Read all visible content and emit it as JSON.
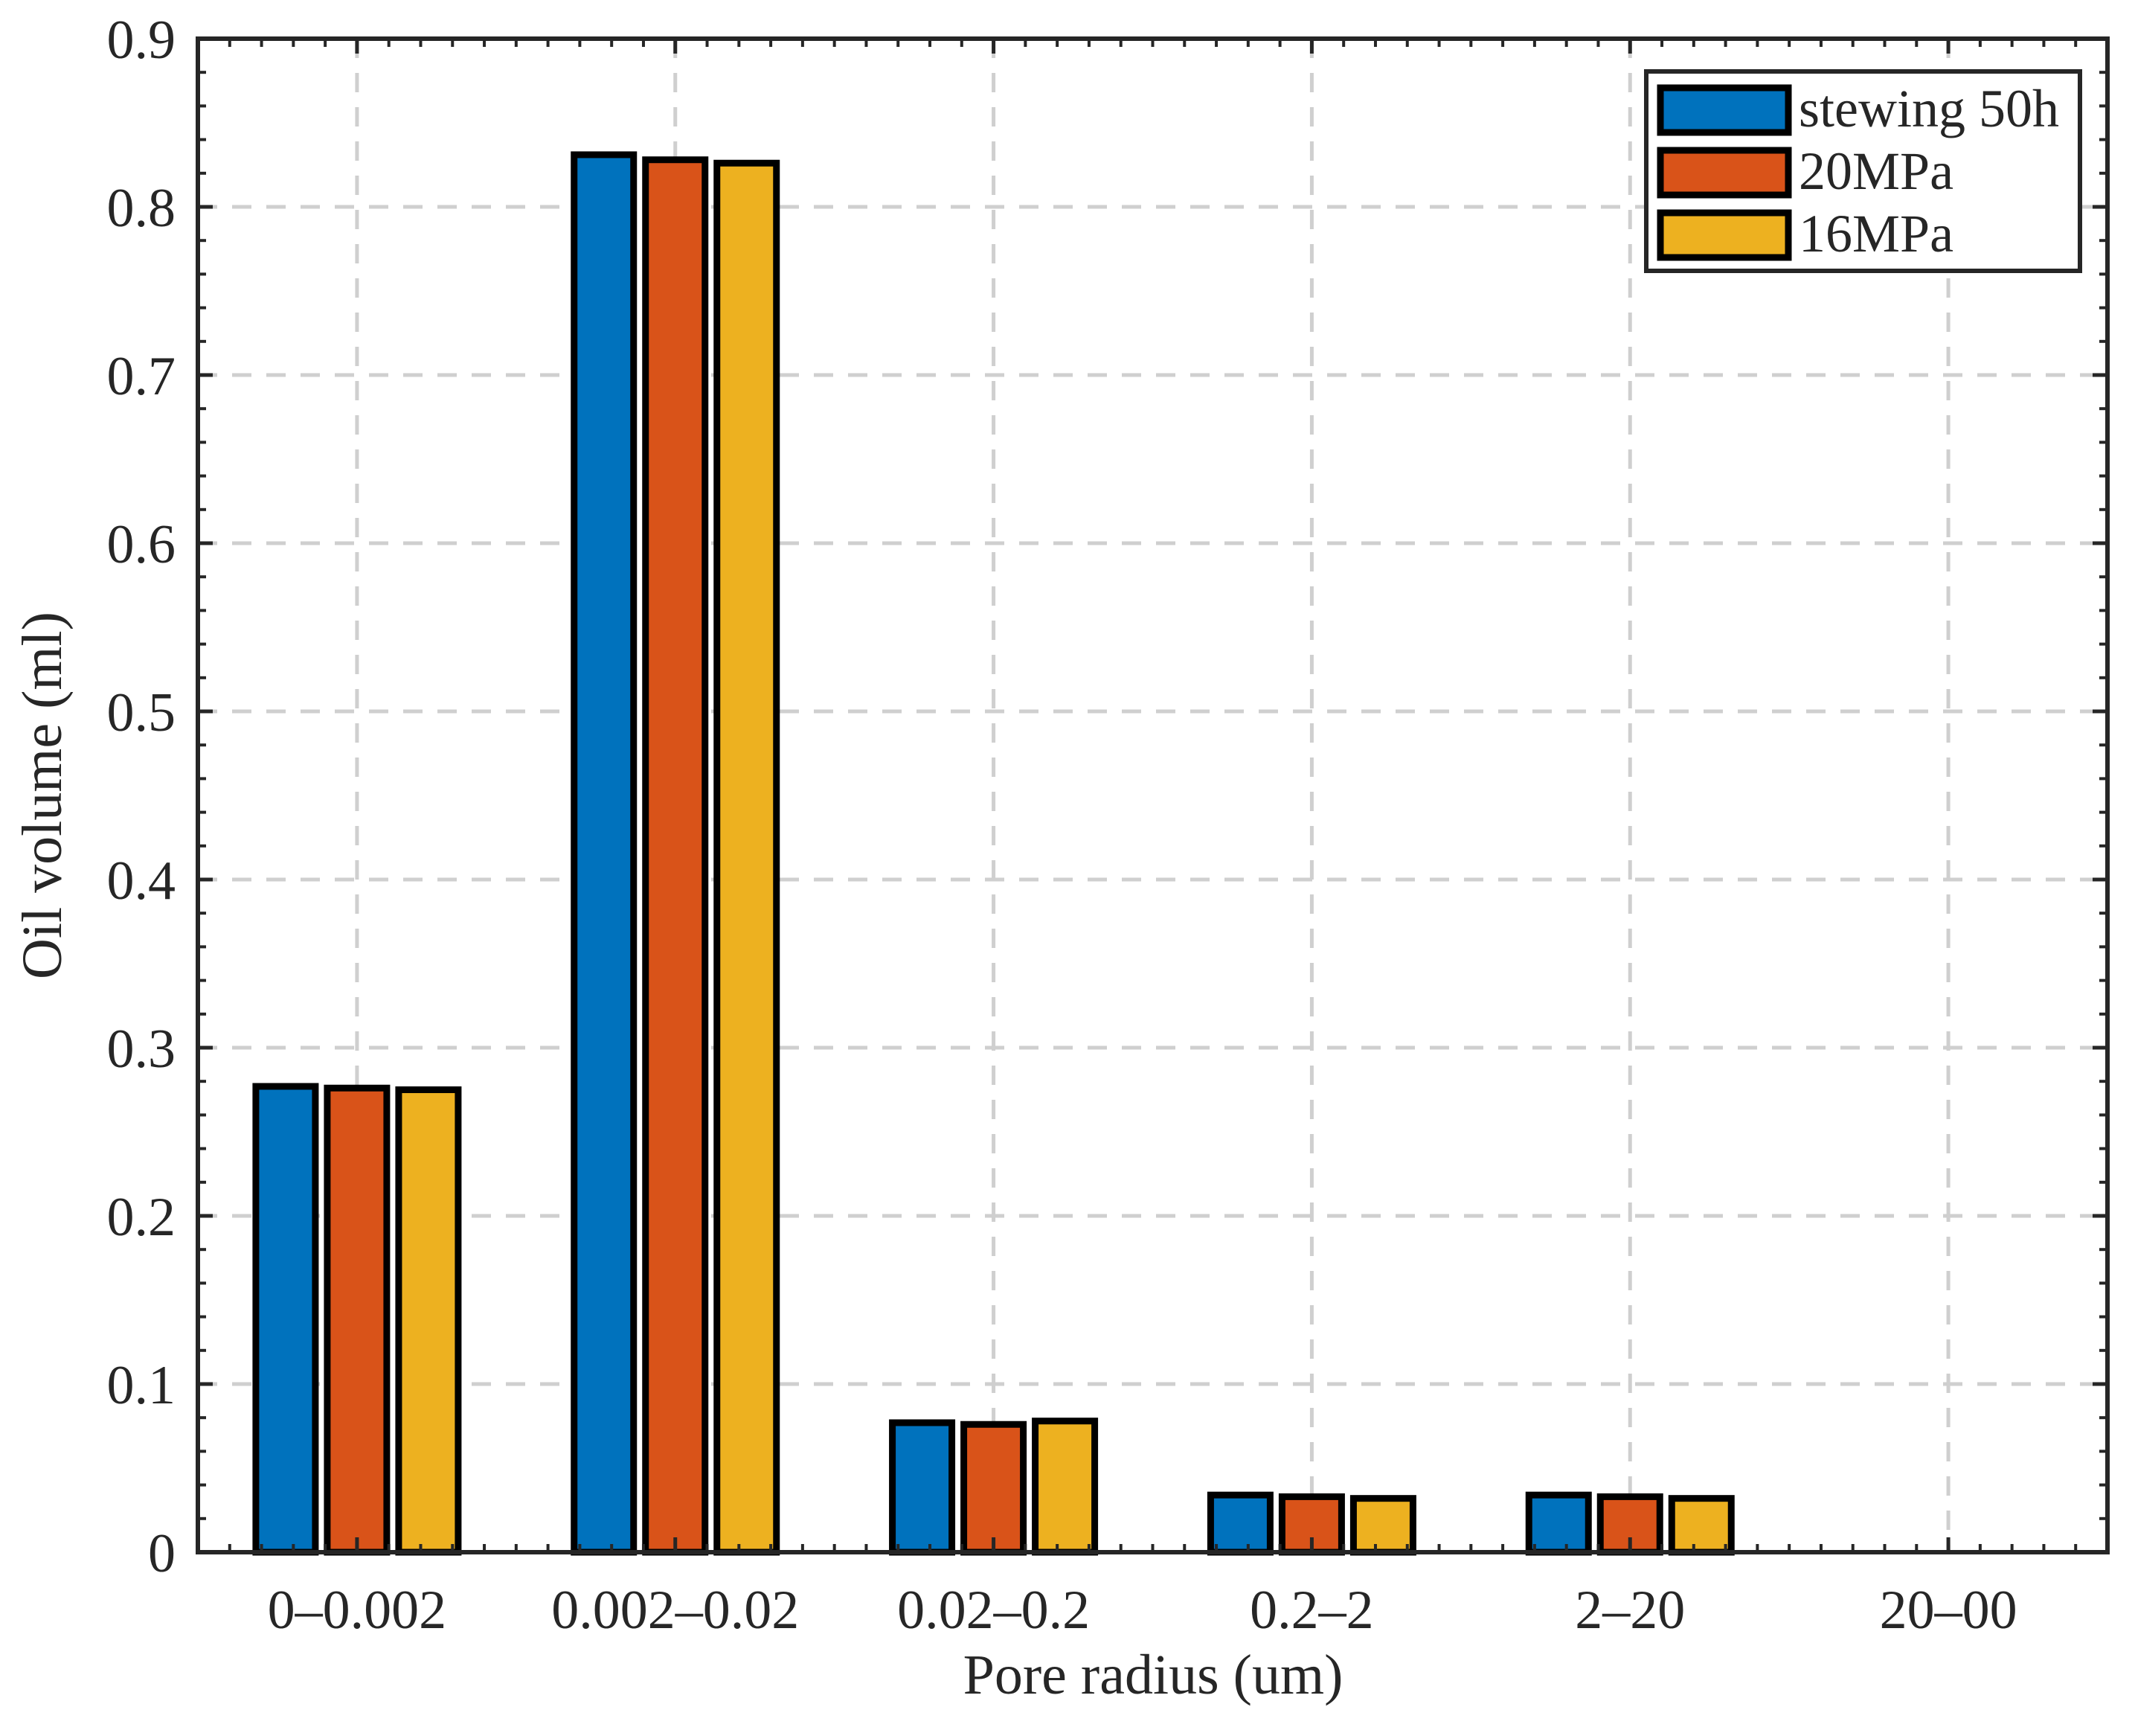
{
  "chart_data": {
    "type": "bar",
    "xlabel": "Pore radius (um)",
    "ylabel": "Oil volume (ml)",
    "categories": [
      "0–0.002",
      "0.002–0.02",
      "0.02–0.2",
      "0.2–2",
      "2–20",
      "20–00"
    ],
    "ylim": [
      0,
      0.9
    ],
    "yticks": [
      "0",
      "0.1",
      "0.2",
      "0.3",
      "0.4",
      "0.5",
      "0.6",
      "0.7",
      "0.8",
      "0.9"
    ],
    "grid": true,
    "legend_position": "top-right",
    "series": [
      {
        "name": "stewing 50h",
        "color": "#0072BD",
        "values": [
          0.277,
          0.831,
          0.077,
          0.034,
          0.034,
          0.0
        ]
      },
      {
        "name": "20MPa",
        "color": "#D95319",
        "values": [
          0.276,
          0.828,
          0.076,
          0.033,
          0.033,
          0.0
        ]
      },
      {
        "name": "16MPa",
        "color": "#EDB120",
        "values": [
          0.275,
          0.826,
          0.078,
          0.032,
          0.032,
          0.0
        ]
      }
    ]
  }
}
